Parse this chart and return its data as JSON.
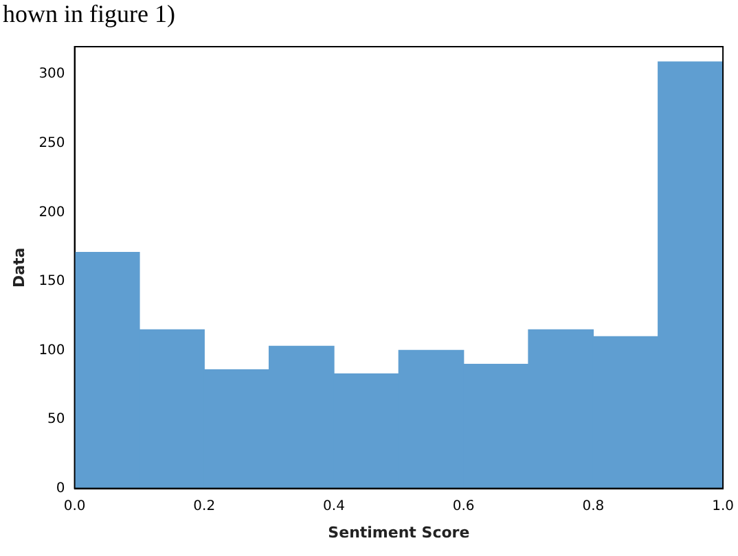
{
  "chart_data": {
    "type": "histogram",
    "xlabel": "Sentiment Score",
    "ylabel": "Data",
    "annotations": [
      "hown in figure 1)"
    ],
    "bins": [
      0,
      0.1,
      0.2,
      0.3,
      0.4,
      0.5,
      0.6,
      0.7,
      0.8,
      0.9,
      1.0
    ],
    "values": [
      171,
      115,
      86,
      103,
      83,
      100,
      90,
      115,
      110,
      309
    ],
    "color": "#5f9ed1",
    "xlim": [
      0,
      1
    ],
    "xticks": [
      {
        "value": 0,
        "label": "0.0"
      },
      0.2,
      0.4,
      0.6,
      0.8,
      {
        "value": 1,
        "label": "1.0"
      }
    ],
    "ylim": [
      0,
      320
    ],
    "yticks": [
      0,
      50,
      100,
      150,
      200,
      250,
      300
    ],
    "grid": false,
    "legend": false
  }
}
